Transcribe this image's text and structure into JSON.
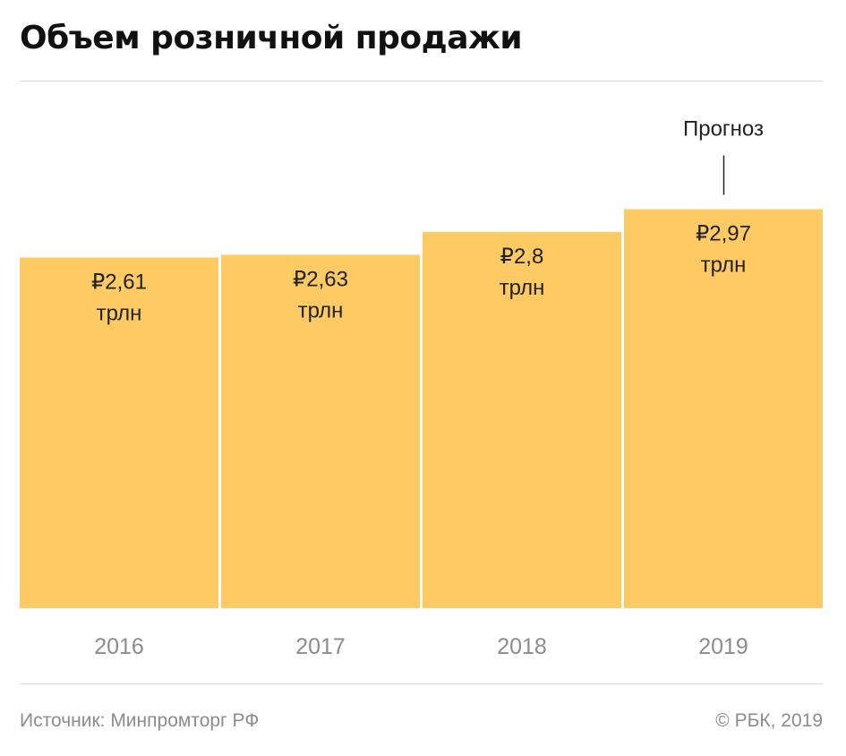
{
  "title": "Объем розничной продажи",
  "source": "Источник: Минпромторг РФ",
  "copyright": "© РБК, 2019",
  "colors": {
    "bar": "#fdca64",
    "rule": "#d9d9d9",
    "muted": "#8c8c8c"
  },
  "chart_data": {
    "type": "bar",
    "title": "Объем розничной продажи",
    "categories": [
      "2016",
      "2017",
      "2018",
      "2019"
    ],
    "values": [
      2.61,
      2.63,
      2.8,
      2.97
    ],
    "value_labels": [
      "₽2,61",
      "₽2,63",
      "₽2,8",
      "₽2,97"
    ],
    "unit_label": "трлн",
    "annotations": [
      {
        "category": "2019",
        "text": "Прогноз"
      }
    ],
    "grid": false,
    "legend": "none"
  }
}
